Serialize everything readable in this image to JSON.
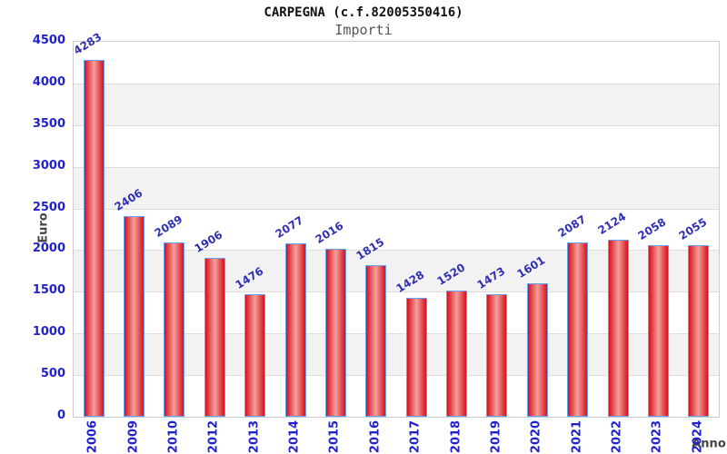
{
  "header": {
    "title": "CARPEGNA (c.f.82005350416)",
    "subtitle": "Importi"
  },
  "chart_data": {
    "type": "bar",
    "title": "CARPEGNA (c.f.82005350416)",
    "subtitle": "Importi",
    "categories": [
      "2006",
      "2009",
      "2010",
      "2012",
      "2013",
      "2014",
      "2015",
      "2016",
      "2017",
      "2018",
      "2019",
      "2020",
      "2021",
      "2022",
      "2023",
      "2024"
    ],
    "values": [
      4283,
      2406,
      2089,
      1906,
      1476,
      2077,
      2016,
      1815,
      1428,
      1520,
      1473,
      1601,
      2087,
      2124,
      2058,
      2055
    ],
    "xlabel": "Anno",
    "ylabel": "Euro",
    "ylim": [
      0,
      4500
    ],
    "ytick_step": 500,
    "yticks": [
      0,
      500,
      1000,
      1500,
      2000,
      2500,
      3000,
      3500,
      4000,
      4500
    ],
    "grid": "horizontal-lines-with-alternating-bands",
    "legend_position": "none",
    "colors": {
      "bar_gradient_dark": "#d11222",
      "bar_gradient_mid": "#ea6060",
      "bar_gradient_light": "#f2a0a0",
      "bar_outline_blue": "#64a2f5",
      "tick_label_blue": "#2222cc",
      "value_label_blue": "#3030b2",
      "axis_title_gray": "#444444",
      "band_gray": "#f2f2f2",
      "gridline_gray": "#dddddd",
      "plot_border_gray": "#cccccc",
      "title_color": "#111111",
      "subtitle_color": "#555555"
    }
  }
}
